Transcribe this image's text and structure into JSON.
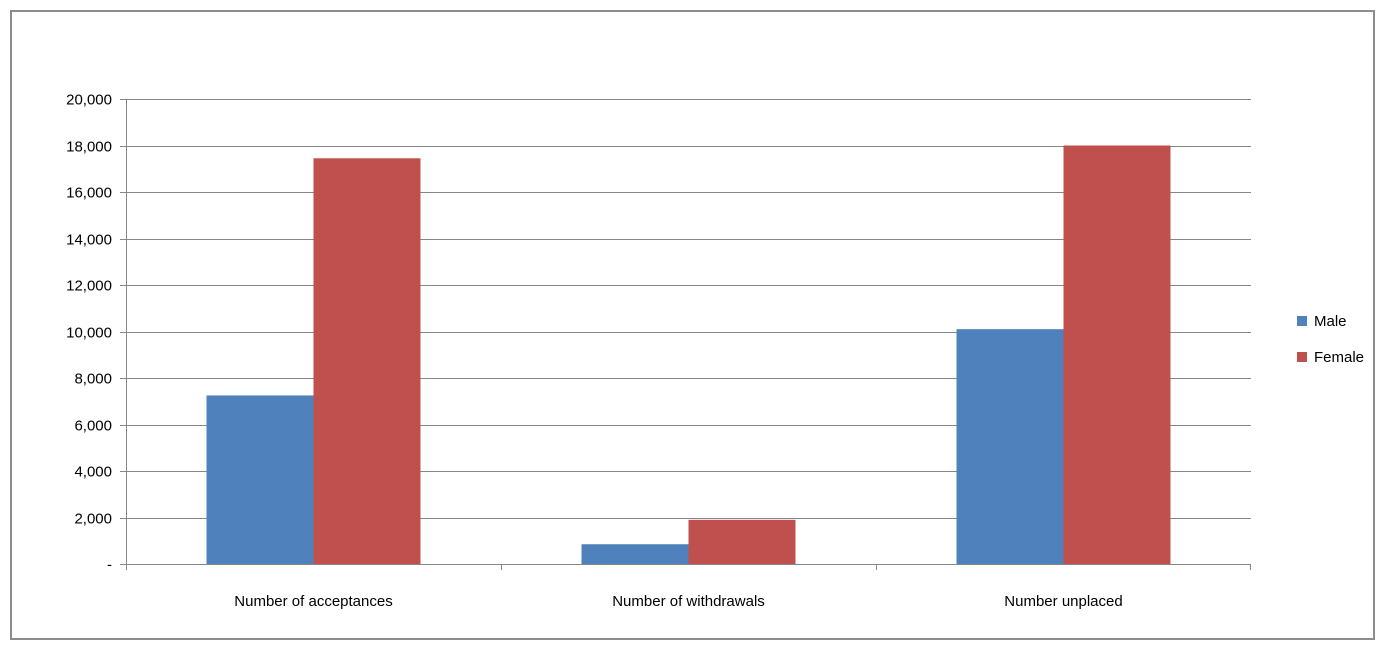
{
  "chart_data": {
    "type": "bar",
    "title": "",
    "xlabel": "",
    "ylabel": "",
    "categories": [
      "Number of acceptances",
      "Number of withdrawals",
      "Number unplaced"
    ],
    "series": [
      {
        "name": "Male",
        "color": "#4f81bd",
        "values": [
          7250,
          850,
          10100
        ]
      },
      {
        "name": "Female",
        "color": "#c0504d",
        "values": [
          17450,
          1900,
          18000
        ]
      }
    ],
    "ylim": [
      0,
      20000
    ],
    "yticks": [
      0,
      2000,
      4000,
      6000,
      8000,
      10000,
      12000,
      14000,
      16000,
      18000,
      20000
    ],
    "ytick_labels": [
      "-",
      "2,000",
      "4,000",
      "6,000",
      "8,000",
      "10,000",
      "12,000",
      "14,000",
      "16,000",
      "18,000",
      "20,000"
    ],
    "grid": true,
    "legend_position": "right"
  }
}
